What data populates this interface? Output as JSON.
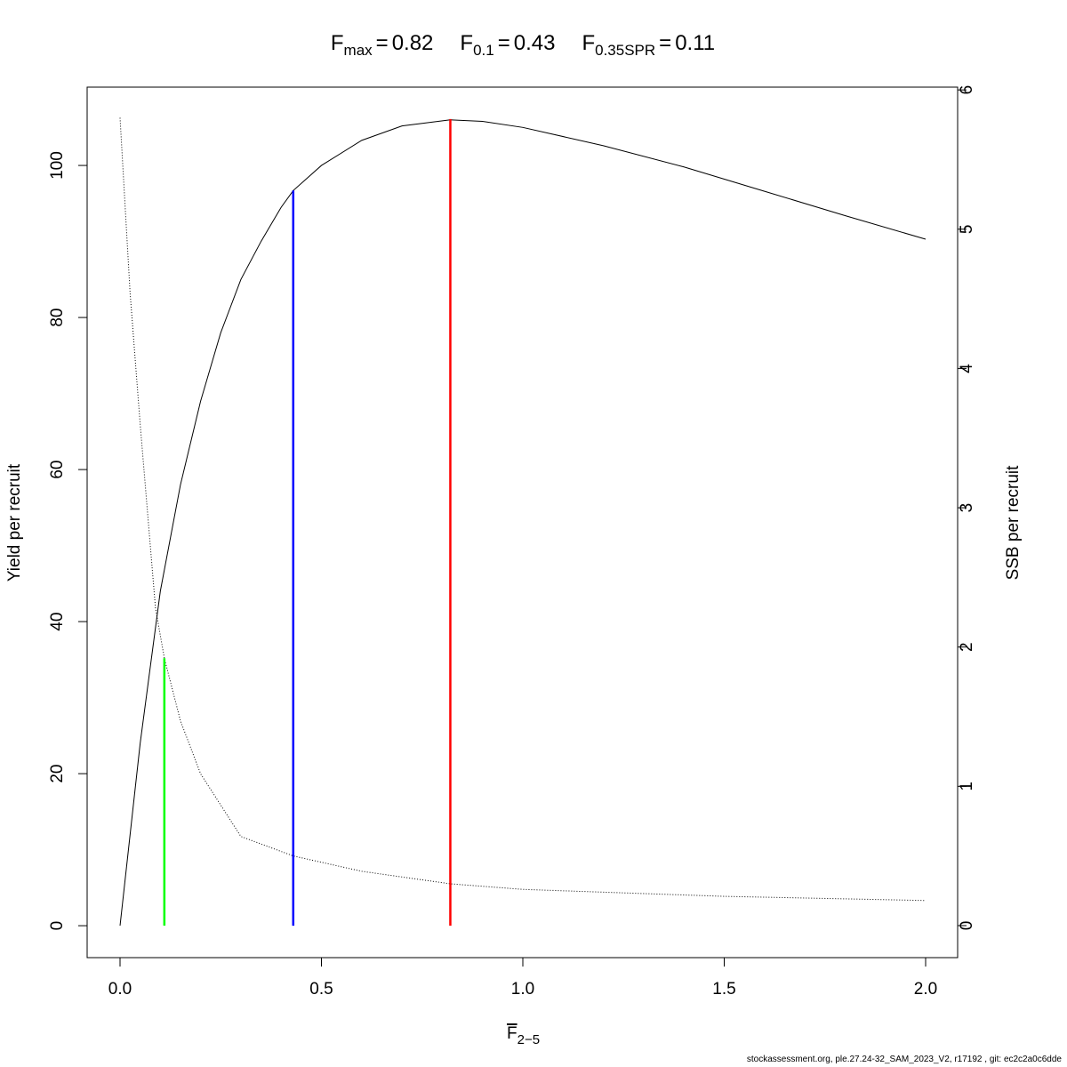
{
  "chart_data": {
    "type": "line",
    "title_parts": [
      {
        "base": "F",
        "sub": "max",
        "rel": "=",
        "value": 0.82
      },
      {
        "base": "F",
        "sub": "0.1",
        "rel": "=",
        "value": 0.43
      },
      {
        "base": "F",
        "sub": "0.35SPR",
        "rel": "=",
        "value": 0.11
      }
    ],
    "x_label": {
      "base": "F",
      "sub": "2−5"
    },
    "y_label": "Yield per recruit",
    "y2_label": "SSB per recruit",
    "footer": "stockassessment.org, ple.27.24-32_SAM_2023_V2, r17192 , git: ec2c2a0c6dde",
    "xlim": [
      -0.0817,
      2.0795
    ],
    "ylim": [
      -4.2,
      110.3
    ],
    "y2lim": [
      -0.23,
      6.02
    ],
    "xticks": [
      {
        "value": 0,
        "label": "0.0"
      },
      {
        "value": 0.5,
        "label": "0.5"
      },
      {
        "value": 1,
        "label": "1.0"
      },
      {
        "value": 1.5,
        "label": "1.5"
      },
      {
        "value": 2,
        "label": "2.0"
      }
    ],
    "yticks": [
      0,
      20,
      40,
      60,
      80,
      100
    ],
    "y2ticks": [
      0,
      1,
      2,
      3,
      4,
      5,
      6
    ],
    "series": [
      {
        "name": "Yield per recruit",
        "color": "#000000",
        "dash": false,
        "x": [
          0,
          0.05,
          0.1,
          0.15,
          0.2,
          0.25,
          0.3,
          0.35,
          0.4,
          0.43,
          0.5,
          0.6,
          0.7,
          0.82,
          0.9,
          1.0,
          1.2,
          1.4,
          1.6,
          1.8,
          2.0
        ],
        "values": [
          0,
          24,
          44,
          58,
          69,
          78,
          85,
          90,
          94.5,
          96.7,
          100,
          103.3,
          105.2,
          106,
          105.8,
          105,
          102.6,
          99.8,
          96.6,
          93.4,
          90.3
        ]
      },
      {
        "name": "SSB per recruit",
        "color": "#000000",
        "dash": true,
        "axis": "y2",
        "x": [
          0,
          0.025,
          0.05,
          0.088,
          0.11,
          0.15,
          0.2,
          0.3,
          0.43,
          0.6,
          0.82,
          1.0,
          1.5,
          2.0
        ],
        "values": [
          5.8,
          4.54,
          3.6,
          2.28,
          1.92,
          1.47,
          1.09,
          0.64,
          0.5,
          0.39,
          0.3,
          0.26,
          0.21,
          0.18
        ]
      }
    ],
    "reference_lines": [
      {
        "x": 0.11,
        "y": 1.92,
        "axis": "y2",
        "color": "#00ff00"
      },
      {
        "x": 0.43,
        "y": 96.7,
        "color": "#0000ff"
      },
      {
        "x": 0.82,
        "y": 106.1,
        "color": "#ff0000"
      }
    ]
  }
}
